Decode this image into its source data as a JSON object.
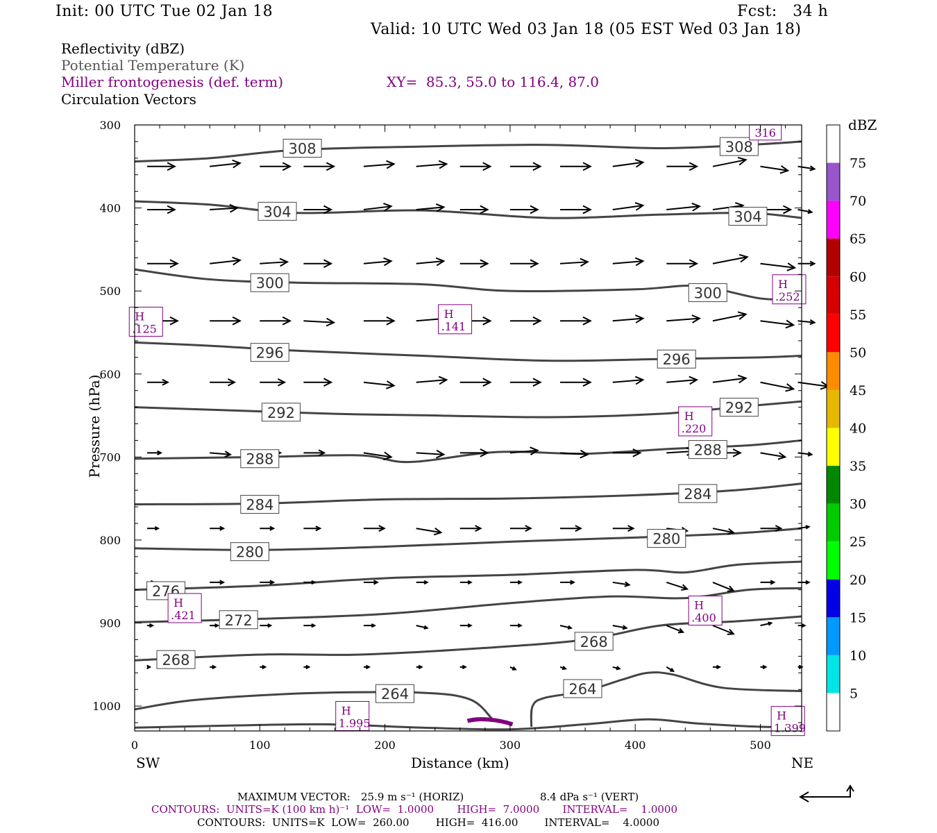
{
  "header": {
    "init": "Init: 00 UTC Tue 02 Jan 18",
    "fcst": "Fcst:   34 h",
    "valid": "Valid: 10 UTC Wed 03 Jan 18 (05 EST Wed 03 Jan 18)"
  },
  "legend": {
    "line1": "Reflectivity (dBZ)",
    "line2": "Potential Temperature (K)",
    "line3": "Miller frontogenesis (def. term)",
    "xy": "XY=  85.3, 55.0 to 116.4, 87.0",
    "line4": "Circulation Vectors"
  },
  "footer": {
    "max_vector_label": "MAXIMUM VECTOR:",
    "max_vector_h": "25.9 m s⁻¹ (HORIZ)",
    "max_vector_v": "8.4 dPa s⁻¹ (VERT)",
    "contours1": "CONTOURS:  UNITS=K (100 km h)⁻¹  LOW=  1.0000       HIGH=  7.0000       INTERVAL=    1.0000",
    "contours2": "CONTOURS:  UNITS=K  LOW=  260.00        HIGH=  416.00        INTERVAL=    4.0000"
  },
  "colorbar": {
    "unit": "dBZ",
    "labels": [
      "5",
      "10",
      "15",
      "20",
      "25",
      "30",
      "35",
      "40",
      "45",
      "50",
      "55",
      "60",
      "65",
      "70",
      "75"
    ],
    "colors": [
      "#ffffff",
      "#00e6e6",
      "#0099ff",
      "#0000e6",
      "#00ff00",
      "#00cc00",
      "#008800",
      "#ffff00",
      "#e6b800",
      "#ff8c00",
      "#ff0000",
      "#d60000",
      "#b00000",
      "#ff00ff",
      "#9955cc",
      "#ffffff"
    ]
  },
  "chart_data": {
    "type": "line",
    "xlabel": "Distance (km)",
    "ylabel": "Pressure (hPa)",
    "xlim": [
      0,
      533
    ],
    "ylim": [
      1030,
      300
    ],
    "x_ticks": [
      0,
      100,
      200,
      300,
      400,
      500
    ],
    "y_ticks": [
      300,
      400,
      500,
      600,
      700,
      800,
      900,
      1000
    ],
    "left_end_label": "SW",
    "right_end_label": "NE",
    "isentropes": [
      {
        "label": "308",
        "label_at": [
          134,
          328
        ],
        "points": [
          [
            0,
            344
          ],
          [
            60,
            340
          ],
          [
            130,
            330
          ],
          [
            230,
            326
          ],
          [
            330,
            324
          ],
          [
            420,
            328
          ],
          [
            490,
            324
          ],
          [
            533,
            320
          ]
        ]
      },
      {
        "label": "308",
        "label_at": [
          483,
          326
        ],
        "points": []
      },
      {
        "label": "304",
        "label_at": [
          114,
          404
        ],
        "points": [
          [
            0,
            392
          ],
          [
            60,
            396
          ],
          [
            130,
            406
          ],
          [
            230,
            403
          ],
          [
            330,
            412
          ],
          [
            420,
            408
          ],
          [
            490,
            406
          ],
          [
            533,
            412
          ]
        ]
      },
      {
        "label": "304",
        "label_at": [
          490,
          410
        ],
        "points": []
      },
      {
        "label": "300",
        "label_at": [
          108,
          490
        ],
        "points": [
          [
            0,
            474
          ],
          [
            60,
            486
          ],
          [
            130,
            490
          ],
          [
            230,
            492
          ],
          [
            300,
            500
          ],
          [
            400,
            498
          ],
          [
            450,
            494
          ],
          [
            500,
            509
          ],
          [
            533,
            510
          ]
        ]
      },
      {
        "label": "300",
        "label_at": [
          458,
          502
        ],
        "points": []
      },
      {
        "label": "296",
        "label_at": [
          108,
          574
        ],
        "points": [
          [
            0,
            562
          ],
          [
            60,
            566
          ],
          [
            130,
            572
          ],
          [
            230,
            578
          ],
          [
            330,
            584
          ],
          [
            420,
            582
          ],
          [
            500,
            580
          ],
          [
            533,
            578
          ]
        ]
      },
      {
        "label": "296",
        "label_at": [
          433,
          582
        ],
        "points": []
      },
      {
        "label": "292",
        "label_at": [
          117,
          646
        ],
        "points": [
          [
            0,
            640
          ],
          [
            80,
            644
          ],
          [
            160,
            648
          ],
          [
            240,
            650
          ],
          [
            330,
            652
          ],
          [
            420,
            648
          ],
          [
            480,
            640
          ],
          [
            533,
            633
          ]
        ]
      },
      {
        "label": "292",
        "label_at": [
          483,
          640
        ],
        "points": []
      },
      {
        "label": "288",
        "label_at": [
          100,
          702
        ],
        "points": [
          [
            0,
            702
          ],
          [
            100,
            700
          ],
          [
            180,
            698
          ],
          [
            220,
            706
          ],
          [
            290,
            694
          ],
          [
            360,
            696
          ],
          [
            430,
            690
          ],
          [
            490,
            686
          ],
          [
            533,
            680
          ]
        ]
      },
      {
        "label": "288",
        "label_at": [
          458,
          691
        ],
        "points": []
      },
      {
        "label": "284",
        "label_at": [
          100,
          757
        ],
        "points": [
          [
            0,
            757
          ],
          [
            100,
            756
          ],
          [
            200,
            751
          ],
          [
            300,
            750
          ],
          [
            400,
            746
          ],
          [
            480,
            740
          ],
          [
            533,
            732
          ]
        ]
      },
      {
        "label": "284",
        "label_at": [
          450,
          744
        ],
        "points": []
      },
      {
        "label": "280",
        "label_at": [
          92,
          814
        ],
        "points": [
          [
            0,
            810
          ],
          [
            100,
            812
          ],
          [
            200,
            808
          ],
          [
            300,
            802
          ],
          [
            400,
            797
          ],
          [
            480,
            792
          ],
          [
            533,
            786
          ]
        ]
      },
      {
        "label": "280",
        "label_at": [
          425,
          798
        ],
        "points": []
      },
      {
        "label": "276",
        "label_at": [
          25,
          861
        ],
        "points": [
          [
            0,
            860
          ],
          [
            100,
            855
          ],
          [
            200,
            846
          ],
          [
            300,
            842
          ],
          [
            400,
            836
          ],
          [
            440,
            839
          ],
          [
            480,
            830
          ],
          [
            533,
            826
          ]
        ]
      },
      {
        "label": "272",
        "label_at": [
          83,
          896
        ],
        "points": [
          [
            0,
            899
          ],
          [
            100,
            895
          ],
          [
            200,
            889
          ],
          [
            300,
            876
          ],
          [
            380,
            868
          ],
          [
            440,
            870
          ],
          [
            490,
            860
          ],
          [
            533,
            858
          ]
        ]
      },
      {
        "label": "268",
        "label_at": [
          33,
          944
        ],
        "points": [
          [
            0,
            945
          ],
          [
            100,
            938
          ],
          [
            180,
            938
          ],
          [
            280,
            930
          ],
          [
            360,
            920
          ],
          [
            420,
            903
          ],
          [
            480,
            898
          ],
          [
            533,
            892
          ]
        ]
      },
      {
        "label": "268",
        "label_at": [
          367,
          922
        ],
        "points": []
      },
      {
        "label": "264",
        "label_at": [
          208,
          985
        ],
        "points": [
          [
            0,
            1004
          ],
          [
            40,
            994
          ],
          [
            90,
            988
          ],
          [
            150,
            984
          ],
          [
            230,
            984
          ],
          [
            268,
            992
          ],
          [
            286,
            1016
          ]
        ]
      },
      {
        "label": "264",
        "label_at": [
          358,
          979
        ],
        "points": [
          [
            317,
            1025
          ],
          [
            318,
            1000
          ],
          [
            328,
            990
          ],
          [
            360,
            982
          ],
          [
            390,
            968
          ],
          [
            410,
            960
          ],
          [
            430,
            962
          ],
          [
            470,
            978
          ],
          [
            533,
            982
          ]
        ]
      },
      {
        "label": "",
        "label_at": null,
        "points": [
          [
            0,
            1026
          ],
          [
            60,
            1024
          ],
          [
            150,
            1022
          ],
          [
            230,
            1026
          ],
          [
            300,
            1028
          ],
          [
            360,
            1022
          ],
          [
            410,
            1016
          ],
          [
            450,
            1021
          ],
          [
            500,
            1025
          ],
          [
            533,
            1025
          ]
        ]
      }
    ],
    "frontogenesis_maxima": [
      {
        "label": "H",
        "value": ".125",
        "x": 9,
        "p": 537
      },
      {
        "label": "H",
        "value": ".141",
        "x": 256,
        "p": 534
      },
      {
        "label": "H",
        "value": ".252",
        "x": 523,
        "p": 498
      },
      {
        "label": "H",
        "value": ".220",
        "x": 448,
        "p": 657
      },
      {
        "label": "H",
        "value": ".421",
        "x": 40,
        "p": 882
      },
      {
        "label": "H",
        "value": ".400",
        "x": 456,
        "p": 885
      },
      {
        "label": "H",
        "value": "1.995",
        "x": 174,
        "p": 1012
      },
      {
        "label": "H",
        "value": "1.399",
        "x": 522,
        "p": 1018
      },
      {
        "label": "",
        "value": "316",
        "x": 504,
        "p": 309
      }
    ],
    "vectors": [
      {
        "p": 350,
        "x": [
          10,
          60,
          100,
          135,
          183,
          225,
          260,
          300,
          340,
          382,
          425,
          462,
          500,
          530
        ],
        "dx": [
          20,
          22,
          22,
          22,
          22,
          22,
          22,
          22,
          22,
          22,
          22,
          24,
          20,
          12
        ],
        "dp": [
          0,
          -4,
          0,
          0,
          -3,
          -3,
          0,
          0,
          0,
          -5,
          0,
          -8,
          5,
          3
        ]
      },
      {
        "p": 402,
        "x": [
          10,
          60,
          100,
          135,
          183,
          225,
          260,
          300,
          340,
          382,
          425,
          462,
          500,
          530
        ],
        "dx": [
          20,
          20,
          20,
          20,
          20,
          20,
          20,
          20,
          22,
          22,
          24,
          22,
          22,
          10
        ],
        "dp": [
          0,
          -2,
          -2,
          0,
          -4,
          -3,
          0,
          0,
          0,
          -5,
          -4,
          -5,
          0,
          3
        ]
      },
      {
        "p": 467,
        "x": [
          10,
          60,
          100,
          135,
          183,
          225,
          260,
          300,
          340,
          382,
          425,
          462,
          500,
          530
        ],
        "dx": [
          22,
          22,
          20,
          20,
          20,
          20,
          20,
          20,
          20,
          22,
          22,
          25,
          25,
          12
        ],
        "dp": [
          0,
          -4,
          -2,
          0,
          -3,
          -3,
          0,
          0,
          -2,
          -3,
          0,
          -8,
          5,
          0
        ]
      },
      {
        "p": 536,
        "x": [
          10,
          60,
          100,
          135,
          183,
          225,
          260,
          300,
          340,
          382,
          425,
          462,
          500,
          530
        ],
        "dx": [
          22,
          22,
          22,
          22,
          22,
          22,
          22,
          22,
          22,
          22,
          24,
          24,
          24,
          12
        ],
        "dp": [
          0,
          0,
          0,
          2,
          0,
          -3,
          0,
          0,
          0,
          -3,
          -3,
          -8,
          5,
          2
        ]
      },
      {
        "p": 610,
        "x": [
          10,
          60,
          100,
          135,
          183,
          225,
          260,
          300,
          340,
          382,
          425,
          462,
          500,
          530
        ],
        "dx": [
          15,
          18,
          18,
          20,
          22,
          22,
          22,
          22,
          22,
          22,
          22,
          24,
          24,
          22
        ],
        "dp": [
          0,
          0,
          0,
          0,
          4,
          -3,
          0,
          0,
          0,
          -3,
          -3,
          -5,
          8,
          5
        ]
      },
      {
        "p": 695,
        "x": [
          10,
          60,
          100,
          135,
          183,
          225,
          260,
          300,
          340,
          382,
          425,
          462,
          500,
          530
        ],
        "dx": [
          10,
          15,
          15,
          15,
          20,
          20,
          20,
          20,
          20,
          20,
          20,
          20,
          18,
          10
        ],
        "dp": [
          0,
          2,
          0,
          0,
          5,
          2,
          0,
          -3,
          2,
          0,
          -2,
          0,
          5,
          2
        ]
      },
      {
        "p": 786,
        "x": [
          10,
          60,
          100,
          135,
          183,
          225,
          260,
          300,
          340,
          382,
          425,
          462,
          500,
          530
        ],
        "dx": [
          8,
          10,
          10,
          12,
          15,
          18,
          15,
          15,
          15,
          15,
          15,
          15,
          15,
          8
        ],
        "dp": [
          0,
          0,
          0,
          0,
          0,
          5,
          0,
          0,
          0,
          0,
          3,
          5,
          0,
          -2
        ]
      },
      {
        "p": 851,
        "x": [
          10,
          60,
          100,
          135,
          183,
          225,
          260,
          300,
          340,
          382,
          425,
          462,
          500,
          530
        ],
        "dx": [
          5,
          10,
          10,
          8,
          10,
          8,
          8,
          8,
          10,
          12,
          15,
          15,
          10,
          8
        ],
        "dp": [
          0,
          0,
          0,
          0,
          0,
          0,
          0,
          0,
          0,
          3,
          8,
          10,
          0,
          0
        ]
      },
      {
        "p": 903,
        "x": [
          10,
          60,
          100,
          135,
          183,
          225,
          260,
          300,
          340,
          382,
          425,
          462,
          500,
          530
        ],
        "dx": [
          4,
          6,
          8,
          8,
          8,
          8,
          8,
          8,
          8,
          10,
          12,
          15,
          8,
          5
        ],
        "dp": [
          0,
          0,
          0,
          0,
          0,
          3,
          0,
          0,
          3,
          3,
          8,
          10,
          -3,
          0
        ]
      },
      {
        "p": 953,
        "x": [
          10,
          60,
          100,
          135,
          183,
          225,
          260,
          300,
          340,
          382,
          425,
          462,
          500,
          530
        ],
        "dx": [
          2,
          4,
          4,
          4,
          4,
          4,
          4,
          4,
          4,
          5,
          5,
          5,
          4,
          3
        ],
        "dp": [
          0,
          0,
          0,
          0,
          0,
          0,
          0,
          3,
          2,
          2,
          5,
          0,
          0,
          0
        ]
      }
    ]
  }
}
